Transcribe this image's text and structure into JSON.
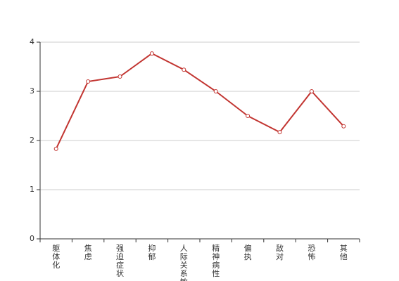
{
  "chart_data": {
    "type": "line",
    "categories": [
      "躯体化",
      "焦虑",
      "强迫症状",
      "抑郁",
      "人际关系敏感",
      "精神病性",
      "偏执",
      "敌对",
      "恐怖",
      "其他"
    ],
    "series": [
      {
        "values": [
          1.83,
          3.2,
          3.3,
          3.77,
          3.44,
          3.0,
          2.5,
          2.17,
          3.0,
          2.29
        ]
      }
    ],
    "yticks": [
      0,
      1,
      2,
      3,
      4
    ],
    "ylim": [
      0,
      4
    ],
    "grid": true,
    "color": "#c23531"
  }
}
